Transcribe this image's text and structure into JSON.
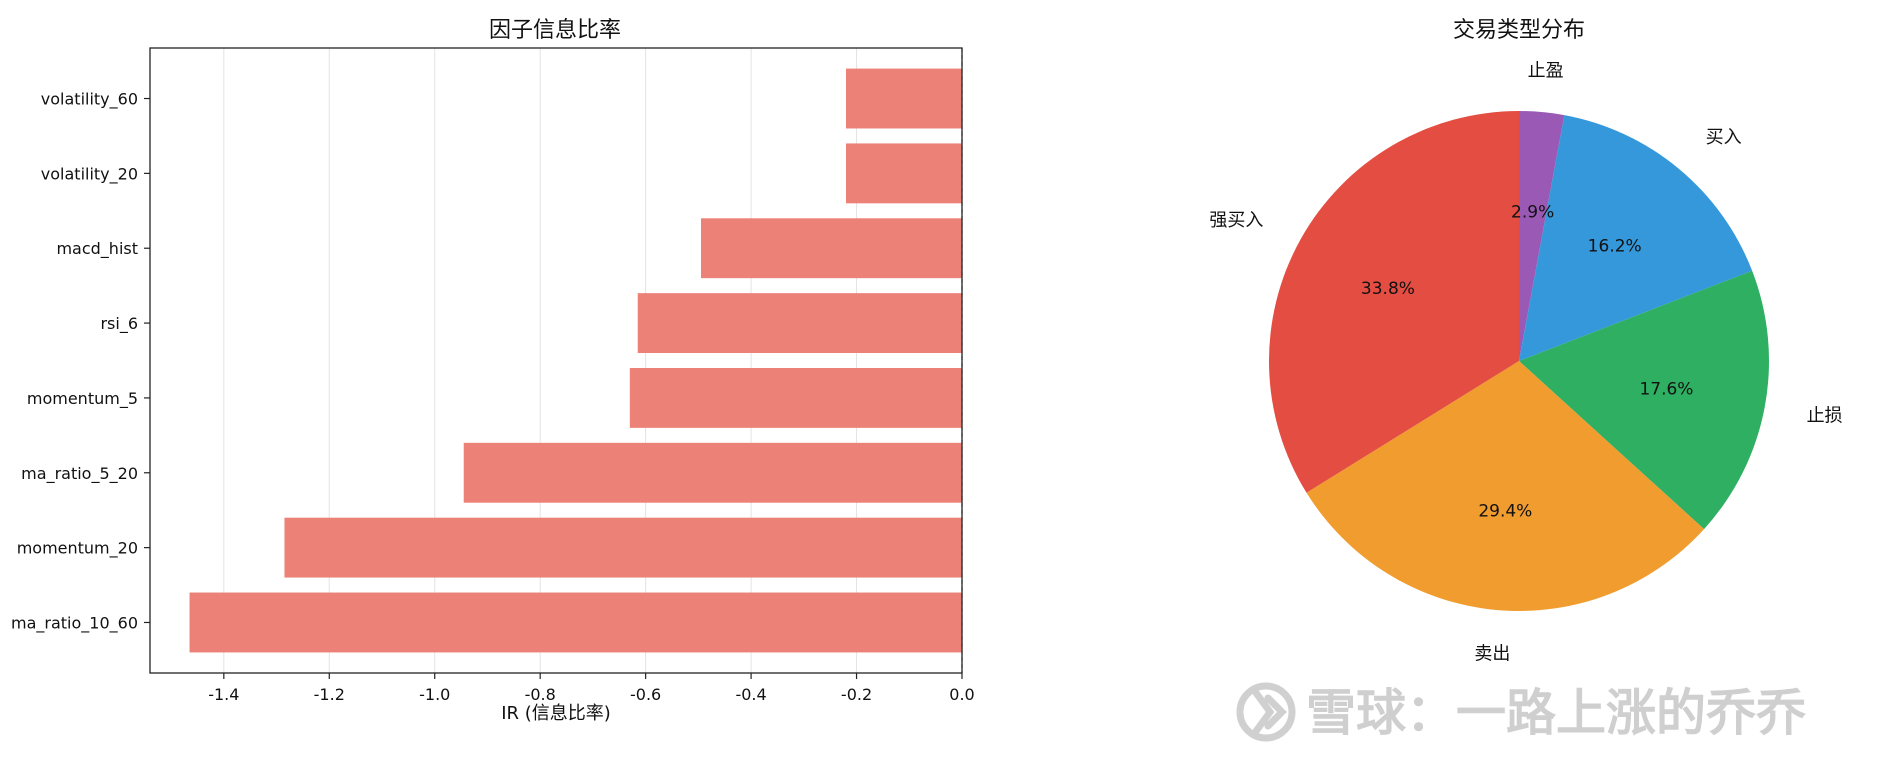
{
  "chart_data": [
    {
      "type": "bar",
      "orientation": "horizontal",
      "title": "因子信息比率",
      "xlabel": "IR (信息比率)",
      "ylabel": "",
      "categories": [
        "volatility_60",
        "volatility_20",
        "macd_hist",
        "rsi_6",
        "momentum_5",
        "ma_ratio_5_20",
        "momentum_20",
        "ma_ratio_10_60"
      ],
      "values": [
        -0.22,
        -0.22,
        -0.495,
        -0.615,
        -0.63,
        -0.945,
        -1.285,
        -1.465
      ],
      "xlim": [
        -1.54,
        0.0
      ],
      "xticks": [
        "-1.4",
        "-1.2",
        "-1.0",
        "-0.8",
        "-0.6",
        "-0.4",
        "-0.2",
        "0.0"
      ],
      "xtick_values": [
        -1.4,
        -1.2,
        -1.0,
        -0.8,
        -0.6,
        -0.4,
        -0.2,
        0.0
      ],
      "grid": "x",
      "bar_color": "#ec8178"
    },
    {
      "type": "pie",
      "title": "交易类型分布",
      "slices": [
        {
          "label": "止盈",
          "value": 2.9,
          "pct_label": "2.9%",
          "color": "#9b59b6"
        },
        {
          "label": "买入",
          "value": 16.2,
          "pct_label": "16.2%",
          "color": "#3498db"
        },
        {
          "label": "止损",
          "value": 17.6,
          "pct_label": "17.6%",
          "color": "#2eaf61"
        },
        {
          "label": "卖出",
          "value": 29.4,
          "pct_label": "29.4%",
          "color": "#f09c2f"
        },
        {
          "label": "强买入",
          "value": 33.8,
          "pct_label": "33.8%",
          "color": "#e44d42"
        }
      ],
      "start_angle": "top",
      "direction": "clockwise"
    }
  ],
  "watermark": {
    "text": "雪球：一路上涨的乔乔",
    "icon": "snowball-logo-icon"
  }
}
